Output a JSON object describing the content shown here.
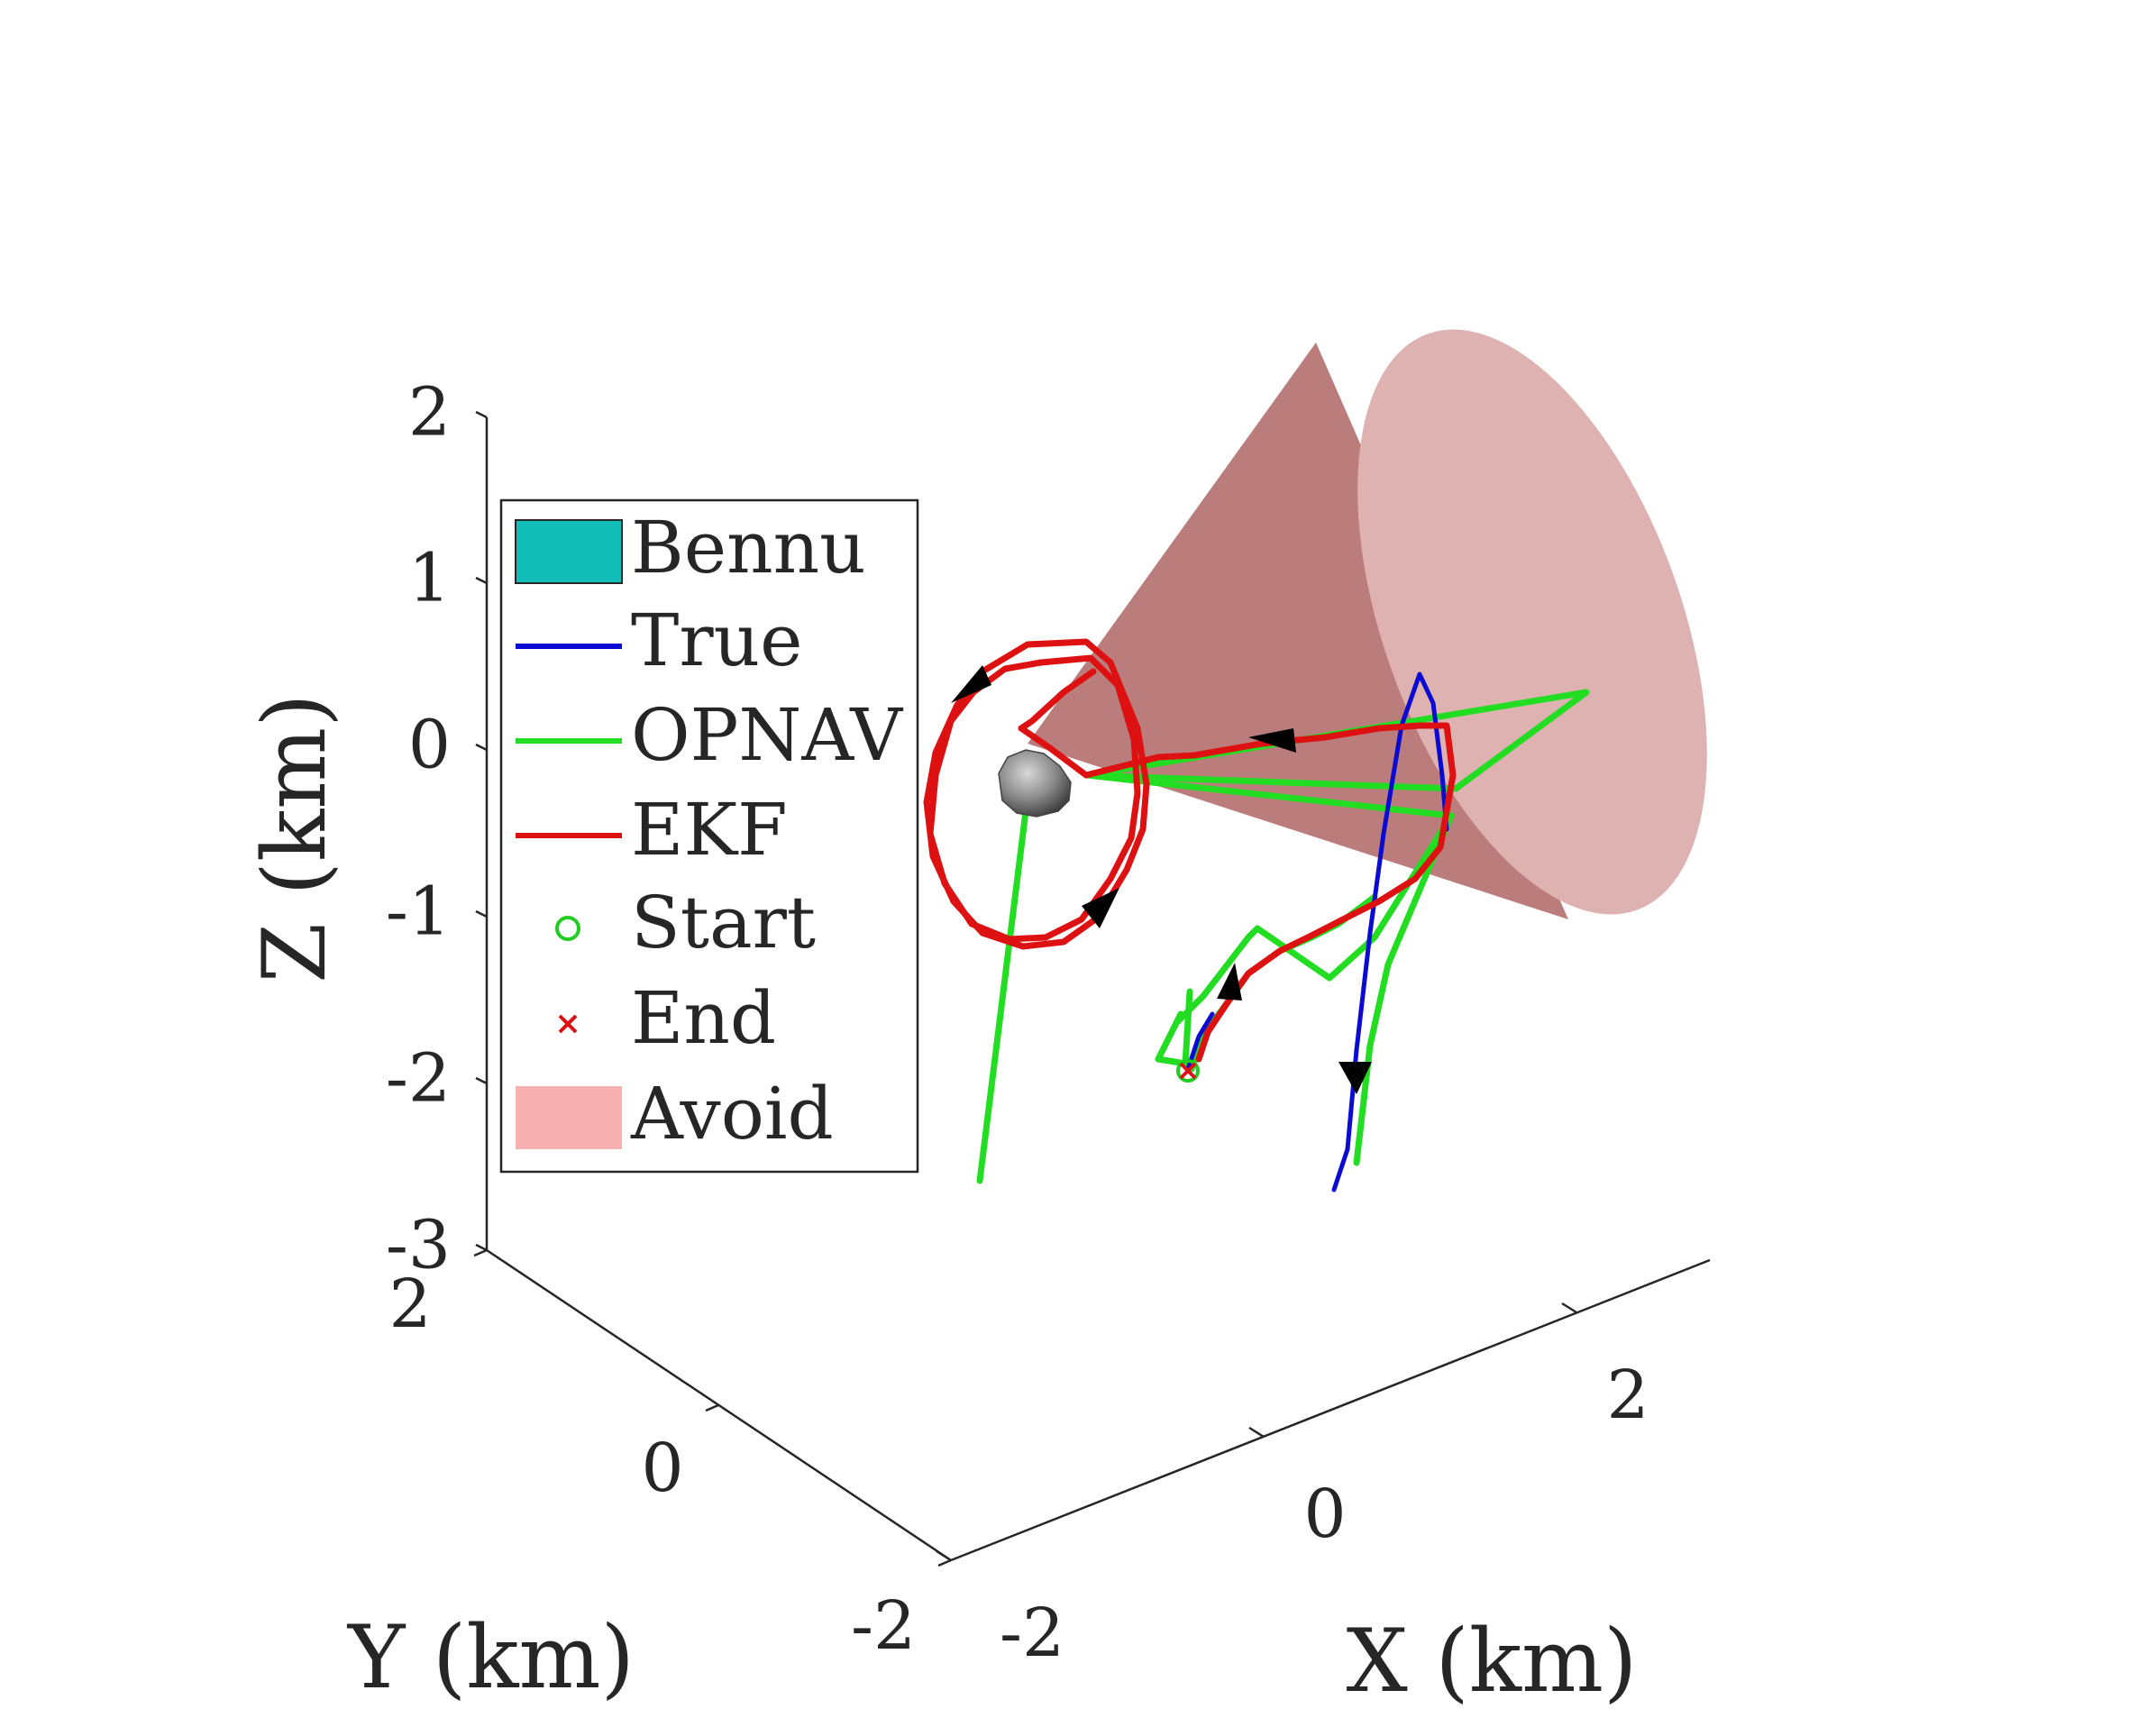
{
  "chart_data": {
    "type": "line",
    "projection": "3d",
    "title": "",
    "xlabel": "X (km)",
    "ylabel": "Y (km)",
    "zlabel": "Z (km)",
    "xlim": [
      -2,
      3
    ],
    "ylim": [
      -2,
      2
    ],
    "zlim": [
      -3,
      2
    ],
    "x_ticks": [
      "-2",
      "0",
      "2"
    ],
    "y_ticks": [
      "-2",
      "0",
      "2"
    ],
    "z_ticks": [
      "-3",
      "-2",
      "-1",
      "0",
      "1",
      "2"
    ],
    "grid": false,
    "legend_position": "top-left",
    "legend": [
      {
        "label": "Bennu",
        "kind": "patch",
        "color": "#12bfb8"
      },
      {
        "label": "True",
        "kind": "line",
        "color": "#0a0ad2"
      },
      {
        "label": "OPNAV",
        "kind": "line",
        "color": "#22dd22"
      },
      {
        "label": "EKF",
        "kind": "line",
        "color": "#dd1111"
      },
      {
        "label": "Start",
        "kind": "marker-circle",
        "color": "#22cc22"
      },
      {
        "label": "End",
        "kind": "marker-x",
        "color": "#dd1111"
      },
      {
        "label": "Avoid",
        "kind": "patch",
        "color": "#f7b1b1"
      }
    ],
    "objects": [
      {
        "name": "Bennu",
        "type": "body",
        "position": [
          0,
          0,
          0
        ],
        "color": "#808080"
      },
      {
        "name": "Avoid",
        "type": "cone",
        "apex": [
          0,
          0,
          0
        ],
        "axis_toward": "+X +Z",
        "color": "#d49a9a"
      }
    ],
    "annotations": [
      "direction arrows along trajectory"
    ]
  },
  "colors": {
    "true": "#0a0ad2",
    "opnav": "#22dd22",
    "ekf": "#dd1111",
    "bennu_legend": "#12bfb8",
    "avoid_legend": "#f7b1b1",
    "cone_face": "#dfb2b2",
    "cone_side": "#bb7c7c"
  }
}
